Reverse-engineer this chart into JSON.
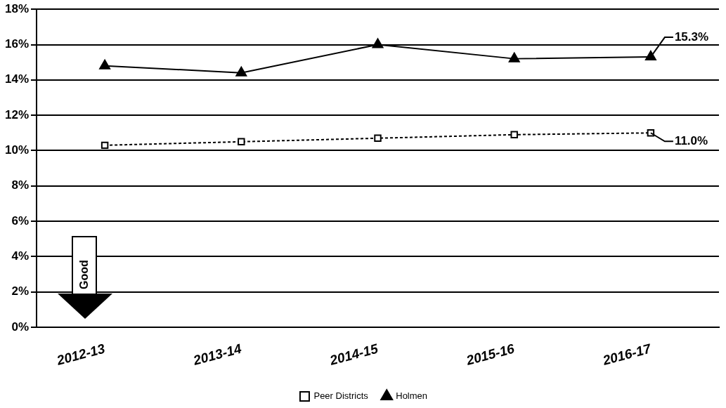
{
  "chart_data": {
    "type": "line",
    "categories": [
      "2012-13",
      "2013-14",
      "2014-15",
      "2015-16",
      "2016-17"
    ],
    "series": [
      {
        "name": "Peer Districts",
        "color": "#000000",
        "values": [
          10.3,
          10.5,
          10.7,
          10.9,
          11.0
        ],
        "marker": "square",
        "line_style": "dashed",
        "value_labels": [
          null,
          null,
          null,
          null,
          "11.0%"
        ]
      },
      {
        "name": "Holmen",
        "color": "#000000",
        "values": [
          14.8,
          14.4,
          16.0,
          15.2,
          15.3
        ],
        "marker": "triangle",
        "line_style": "solid",
        "value_labels": [
          null,
          null,
          null,
          null,
          "15.3%"
        ]
      }
    ],
    "ylim": [
      0,
      18
    ],
    "yticks": [
      {
        "value": 0,
        "label": "0%"
      },
      {
        "value": 2,
        "label": "2%"
      },
      {
        "value": 4,
        "label": "4%"
      },
      {
        "value": 6,
        "label": "6%"
      },
      {
        "value": 8,
        "label": "8%"
      },
      {
        "value": 10,
        "label": "10%"
      },
      {
        "value": 12,
        "label": "12%"
      },
      {
        "value": 14,
        "label": "14%"
      },
      {
        "value": 16,
        "label": "16%"
      },
      {
        "value": 18,
        "label": "18%"
      }
    ],
    "grid": "y",
    "legend": "bottom",
    "annotations": [
      "Good"
    ]
  }
}
